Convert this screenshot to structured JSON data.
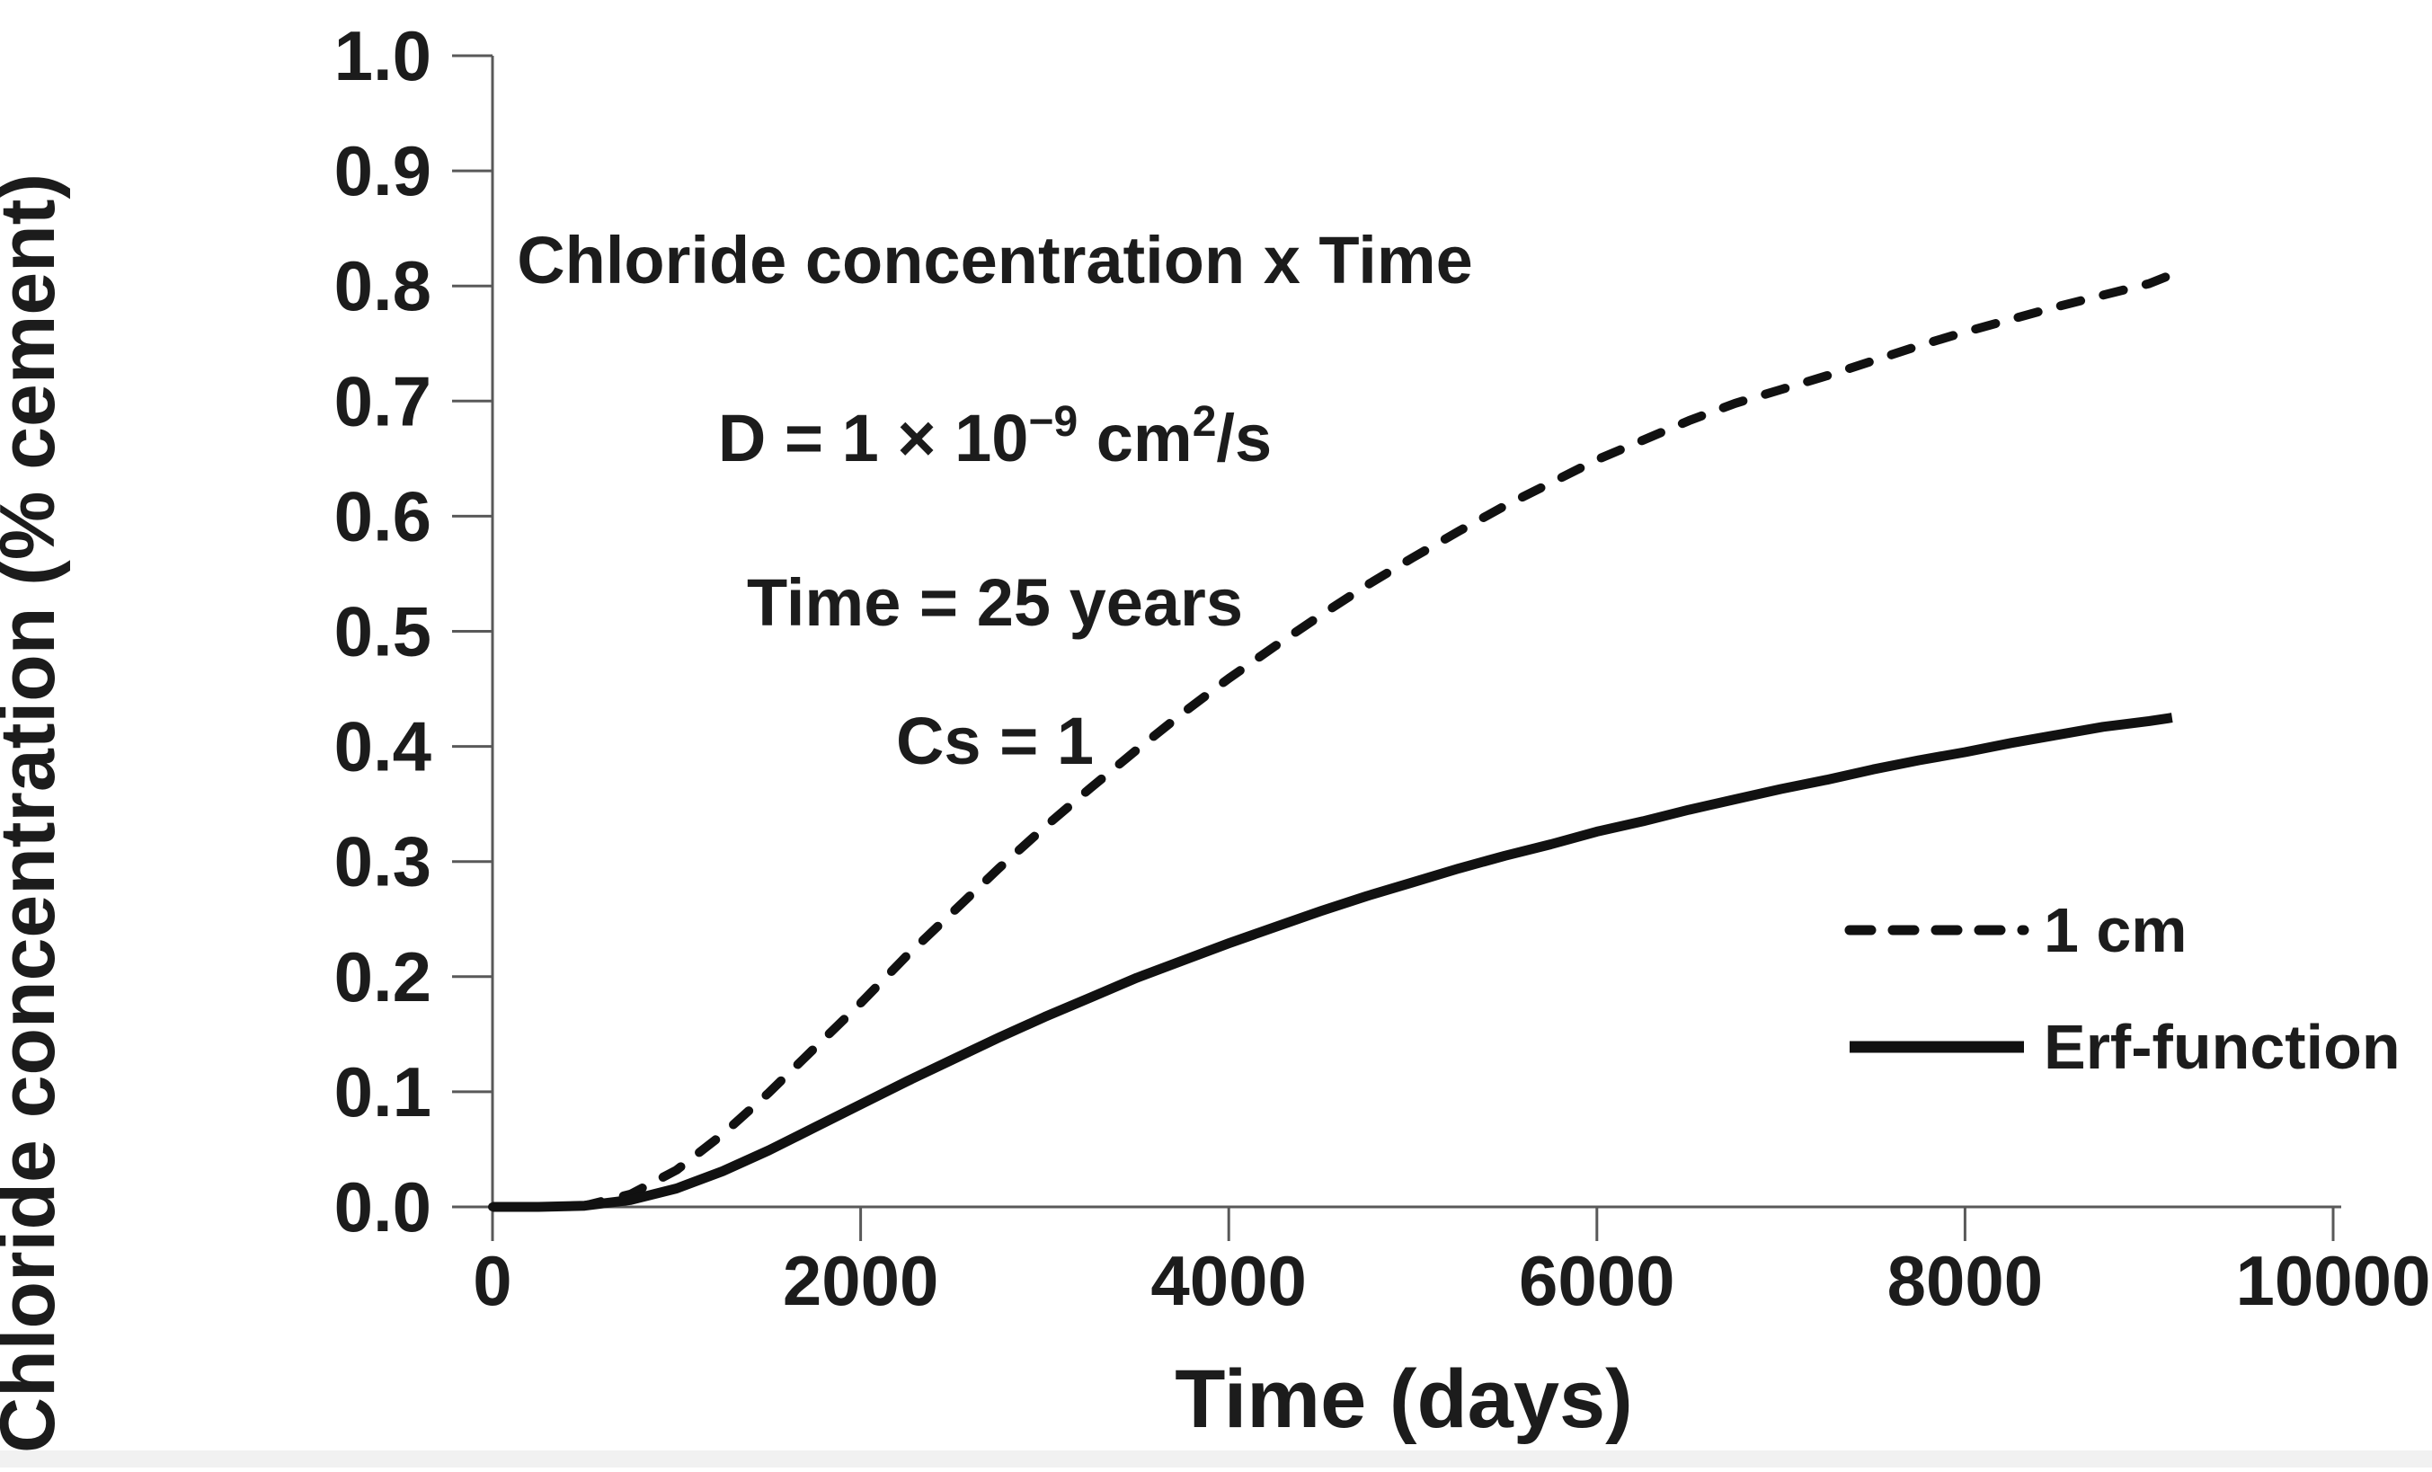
{
  "figure": {
    "background": "#ffffff",
    "text_color": "#1c1c1c",
    "axis_color": "#595959",
    "line_color": "#111111",
    "bottom_strip_color": "#f1f1f1"
  },
  "chart_data": {
    "type": "line",
    "title": "Chloride concentration x Time",
    "xlabel": "Time (days)",
    "ylabel": "Chloride concentration (% cement)",
    "xlim": [
      0,
      10000
    ],
    "ylim": [
      0.0,
      1.0
    ],
    "grid": false,
    "x_ticks": [
      {
        "value": 0,
        "label": "0"
      },
      {
        "value": 2000,
        "label": "2000"
      },
      {
        "value": 4000,
        "label": "4000"
      },
      {
        "value": 6000,
        "label": "6000"
      },
      {
        "value": 8000,
        "label": "8000"
      },
      {
        "value": 10000,
        "label": "10000"
      }
    ],
    "y_ticks": [
      {
        "value": 0.0,
        "label": "0.0"
      },
      {
        "value": 0.1,
        "label": "0.1"
      },
      {
        "value": 0.2,
        "label": "0.2"
      },
      {
        "value": 0.3,
        "label": "0.3"
      },
      {
        "value": 0.4,
        "label": "0.4"
      },
      {
        "value": 0.5,
        "label": "0.5"
      },
      {
        "value": 0.6,
        "label": "0.6"
      },
      {
        "value": 0.7,
        "label": "0.7"
      },
      {
        "value": 0.8,
        "label": "0.8"
      },
      {
        "value": 0.9,
        "label": "0.9"
      },
      {
        "value": 1.0,
        "label": "1.0"
      }
    ],
    "annotation_lines": [
      {
        "parts": [
          {
            "t": "Chloride concentration x Time"
          }
        ]
      },
      {
        "parts": [
          {
            "t": "D = 1 × 10"
          },
          {
            "t": "−9",
            "sup": true
          },
          {
            "t": "  cm"
          },
          {
            "t": "2",
            "sup": true
          },
          {
            "t": "/s"
          }
        ]
      },
      {
        "parts": [
          {
            "t": "Time = 25 years"
          }
        ]
      },
      {
        "parts": [
          {
            "t": "Cs = 1"
          }
        ]
      }
    ],
    "legend": {
      "position": "inside-lower-right",
      "entries": [
        {
          "label": "1 cm",
          "style": "dashed"
        },
        {
          "label": "Erf-function",
          "style": "solid"
        }
      ]
    },
    "x": [
      0,
      250,
      500,
      750,
      1000,
      1250,
      1500,
      1750,
      2000,
      2250,
      2500,
      2750,
      3000,
      3250,
      3500,
      3750,
      4000,
      4250,
      4500,
      4750,
      5000,
      5250,
      5500,
      5750,
      6000,
      6250,
      6500,
      6750,
      7000,
      7250,
      7500,
      7750,
      8000,
      8250,
      8500,
      8750,
      9000,
      9125
    ],
    "series": [
      {
        "name": "1 cm",
        "style": "dashed",
        "values": [
          0,
          0,
          0.001,
          0.011,
          0.032,
          0.063,
          0.099,
          0.138,
          0.177,
          0.218,
          0.256,
          0.294,
          0.33,
          0.364,
          0.397,
          0.429,
          0.459,
          0.487,
          0.514,
          0.54,
          0.564,
          0.587,
          0.609,
          0.629,
          0.649,
          0.666,
          0.683,
          0.698,
          0.71,
          0.722,
          0.735,
          0.748,
          0.76,
          0.771,
          0.782,
          0.792,
          0.802,
          0.81
        ]
      },
      {
        "name": "Erf-function",
        "style": "solid",
        "values": [
          0,
          0,
          0.001,
          0.006,
          0.016,
          0.031,
          0.049,
          0.069,
          0.089,
          0.109,
          0.128,
          0.147,
          0.165,
          0.182,
          0.199,
          0.214,
          0.229,
          0.243,
          0.257,
          0.27,
          0.282,
          0.294,
          0.305,
          0.315,
          0.326,
          0.335,
          0.345,
          0.354,
          0.363,
          0.371,
          0.38,
          0.388,
          0.395,
          0.403,
          0.41,
          0.417,
          0.422,
          0.425
        ]
      }
    ]
  }
}
